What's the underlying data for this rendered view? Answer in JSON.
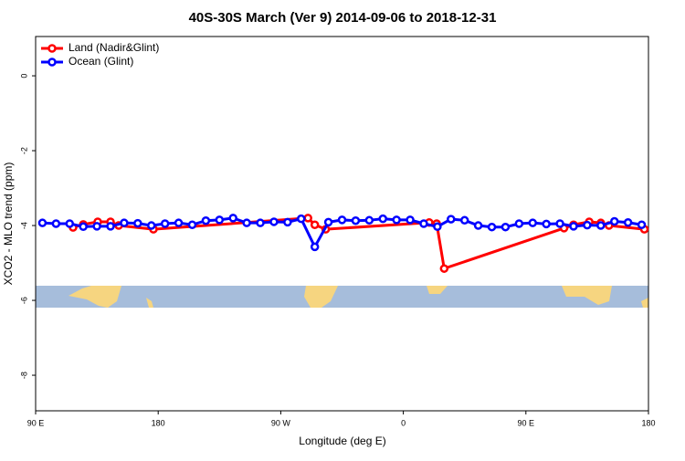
{
  "chart_data": {
    "type": "line",
    "title": "40S-30S March (Ver 9)   2014-09-06 to 2018-12-31",
    "x_label": "Longitude (deg E)",
    "y_label": "XCO2 - MLO trend (ppm)",
    "xlim": [
      90,
      540
    ],
    "xticks": [
      {
        "value": 90,
        "label": "90 E"
      },
      180,
      {
        "value": 270,
        "label": "90 W"
      },
      {
        "value": 360,
        "label": "0"
      },
      {
        "value": 450,
        "label": "90 E"
      },
      {
        "value": 540,
        "label": "180"
      }
    ],
    "ylim": [
      -8.95,
      1.05
    ],
    "yticks": [
      0,
      -2,
      -4,
      -6,
      -8
    ],
    "legend": "top-left",
    "series": [
      {
        "name": "Land (Nadir&Glint)",
        "color": "#ff0000",
        "x": [
          117.5,
          125,
          135.6,
          145,
          151,
          176.5,
          290,
          295,
          303,
          379,
          384.5,
          390,
          478,
          485,
          496.5,
          505,
          511,
          537
        ],
        "values": [
          -4.05,
          -3.97,
          -3.9,
          -3.9,
          -4.0,
          -4.1,
          -3.8,
          -3.98,
          -4.1,
          -3.92,
          -3.95,
          -5.15,
          -4.07,
          -3.98,
          -3.9,
          -3.93,
          -4.0,
          -4.1
        ]
      },
      {
        "name": "Ocean (Glint)",
        "color": "#0000ff",
        "x": [
          95,
          105,
          115,
          125,
          135,
          145,
          155,
          165,
          175,
          185,
          195,
          205,
          215,
          225,
          235,
          245,
          255,
          265,
          275,
          285,
          295,
          305,
          315,
          325,
          335,
          345,
          355,
          365,
          375,
          385,
          395,
          405,
          415,
          425,
          435,
          445,
          455,
          465,
          475,
          485,
          495,
          505,
          515,
          525,
          535
        ],
        "values": [
          -3.93,
          -3.95,
          -3.95,
          -4.03,
          -4.02,
          -4.02,
          -3.93,
          -3.94,
          -4.0,
          -3.95,
          -3.93,
          -3.98,
          -3.87,
          -3.85,
          -3.8,
          -3.93,
          -3.93,
          -3.9,
          -3.91,
          -3.82,
          -4.57,
          -3.91,
          -3.85,
          -3.87,
          -3.86,
          -3.82,
          -3.85,
          -3.85,
          -3.95,
          -4.03,
          -3.83,
          -3.86,
          -4.0,
          -4.04,
          -4.04,
          -3.95,
          -3.93,
          -3.96,
          -3.95,
          -4.02,
          -3.99,
          -4.0,
          -3.89,
          -3.92,
          -3.98
        ]
      }
    ]
  }
}
